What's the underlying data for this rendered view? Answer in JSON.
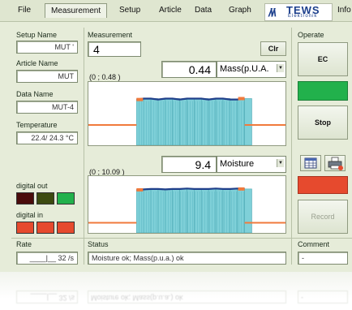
{
  "menu": {
    "items": [
      "File",
      "Measurement",
      "Setup",
      "Article",
      "Data",
      "Graph",
      "Info"
    ],
    "active": "Measurement"
  },
  "logo": {
    "text": "TEWS",
    "subtext": "Elektronik"
  },
  "left_panel": {
    "setup_name_label": "Setup Name",
    "setup_name_value": "MUT '",
    "article_name_label": "Article Name",
    "article_name_value": "MUT",
    "data_name_label": "Data Name",
    "data_name_value": "MUT-4",
    "temperature_label": "Temperature",
    "temperature_value": "22.4/ 24.3 °C",
    "digital_out_label": "digital out",
    "digital_in_label": "digital in",
    "digital_out_colors": [
      "#4a0c0c",
      "#3c4a10",
      "#22b14c"
    ],
    "digital_in_colors": [
      "#e64a2e",
      "#e64a2e",
      "#e64a2e"
    ],
    "rate_label": "Rate",
    "rate_value": "____|__ 32 /s"
  },
  "measurement": {
    "title": "Measurement",
    "count": "4",
    "clr_label": "Clr",
    "chart1": {
      "value": "0.44",
      "unit_selected": "Mass(p.U.A.",
      "coord_readout": "(0 ; 0.48 )"
    },
    "chart2": {
      "value": "9.4",
      "unit_selected": "Moisture",
      "coord_readout": "(0 ; 10.09 )"
    }
  },
  "status": {
    "label": "Status",
    "text": "Moisture ok; Mass(p.u.a.) ok"
  },
  "operate": {
    "label": "Operate",
    "ec_label": "EC",
    "stop_label": "Stop",
    "record_label": "Record",
    "green_color": "#22b14c",
    "red_color": "#e64a2e"
  },
  "comment": {
    "label": "Comment",
    "value": "-"
  },
  "chart_data": [
    {
      "type": "area",
      "title": "",
      "xlabel": "",
      "ylabel": "",
      "series": [
        {
          "values": [
            0.18,
            0.18,
            0.18,
            0.18,
            0.18,
            0.18,
            0.45,
            0.46,
            0.46,
            0.45,
            0.46,
            0.46,
            0.45,
            0.46,
            0.46,
            0.46,
            0.45,
            0.46,
            0.46,
            0.45,
            0.45,
            0.46,
            0.18,
            0.18,
            0.18,
            0.18,
            0.18
          ]
        }
      ]
    },
    {
      "type": "area",
      "title": "",
      "xlabel": "",
      "ylabel": "",
      "series": [
        {
          "values": [
            1.6,
            1.6,
            1.6,
            1.6,
            1.6,
            1.6,
            9.2,
            9.3,
            9.4,
            9.4,
            9.3,
            9.4,
            9.4,
            9.5,
            9.4,
            9.4,
            9.4,
            9.5,
            9.4,
            9.4,
            9.5,
            9.4,
            1.6,
            1.6,
            1.6,
            1.6,
            1.6
          ]
        }
      ]
    }
  ]
}
